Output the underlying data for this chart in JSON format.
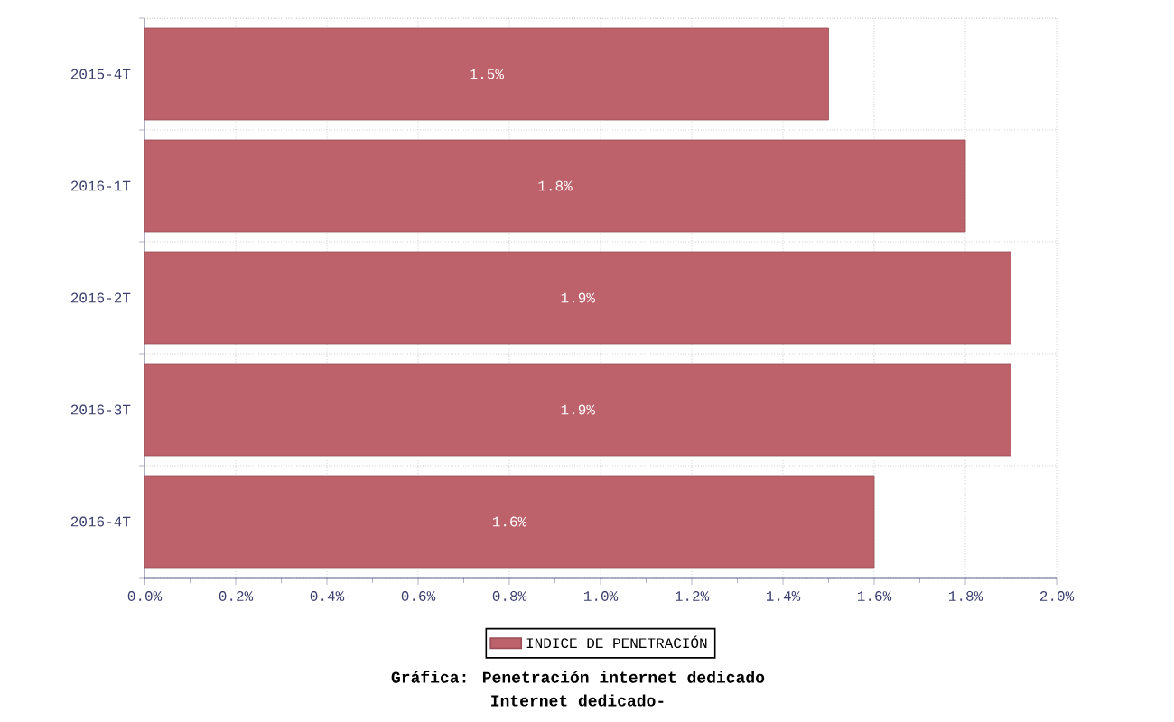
{
  "chart_data": {
    "type": "bar",
    "orientation": "horizontal",
    "title": "Gráfica: Penetración internet dedicado",
    "subtitle": "Internet dedicado-",
    "categories": [
      "2015-4T",
      "2016-1T",
      "2016-2T",
      "2016-3T",
      "2016-4T"
    ],
    "series": [
      {
        "name": "INDICE DE PENETRACIÓN",
        "color": "#bd616b",
        "values": [
          1.5,
          1.8,
          1.9,
          1.9,
          1.6
        ],
        "value_labels": [
          "1.5%",
          "1.8%",
          "1.9%",
          "1.9%",
          "1.6%"
        ]
      }
    ],
    "xlim": [
      0,
      2.0
    ],
    "xticks": [
      {
        "value": 0,
        "label": "0.0%"
      },
      {
        "value": 0.2,
        "label": "0.2%"
      },
      {
        "value": 0.4,
        "label": "0.4%"
      },
      {
        "value": 0.6,
        "label": "0.6%"
      },
      {
        "value": 0.8,
        "label": "0.8%"
      },
      {
        "value": 1.0,
        "label": "1.0%"
      },
      {
        "value": 1.2,
        "label": "1.2%"
      },
      {
        "value": 1.4,
        "label": "1.4%"
      },
      {
        "value": 1.6,
        "label": "1.6%"
      },
      {
        "value": 1.8,
        "label": "1.8%"
      },
      {
        "value": 2.0,
        "label": "2.0%"
      }
    ],
    "grid": true,
    "legend": "bottom"
  }
}
